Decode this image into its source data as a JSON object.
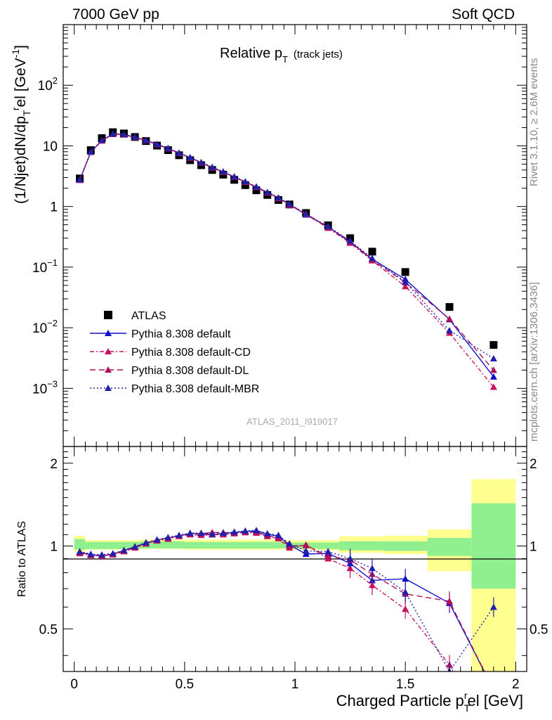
{
  "header": {
    "left": "7000 GeV pp",
    "right": "Soft QCD"
  },
  "side_labels": {
    "rivet": "Rivet 3.1.10, ≥ 2.6M events",
    "mcplots": "mcplots.cern.ch [arXiv:1306.3436]"
  },
  "chart_data": {
    "type": "scatter",
    "title": "Relative p_T (track jets)",
    "title_main": "Relative p",
    "title_sub": "T",
    "title_extra": "(track jets)",
    "analysis_id": "ATLAS_2011_I919017",
    "xlabel": "Charged Particle p_T^rel [GeV]",
    "xlabel_main": "Charged Particle p",
    "xlabel_sub": "T",
    "xlabel_sup": "r",
    "xlabel_tail": "el [GeV]",
    "ylabel": "(1/Njet)dN/dp_T^rel [GeV^-1]",
    "ylabel_main": "(1/Njet)dN/dp",
    "ylabel_sub": "T",
    "ylabel_sup": "r",
    "ylabel_tail": "el [GeV",
    "ylabel_unit_sup": "-1",
    "ylabel_close": "]",
    "ratio_ylabel": "Ratio to ATLAS",
    "xlim": [
      -0.05,
      2.05
    ],
    "ylim_main": [
      0.00011,
      1000
    ],
    "ylim_ratio": [
      0.35,
      2.3
    ],
    "yscale_main": "log",
    "legend_position": "bottom-left",
    "x_ticks": [
      "0",
      "0.5",
      "1",
      "1.5",
      "2"
    ],
    "y_ticks_main": [
      "10^-3",
      "10^-2",
      "10^-1",
      "1",
      "10",
      "10^2"
    ],
    "y_ticks_ratio": [
      "0.5",
      "1",
      "2"
    ],
    "x": [
      0.025,
      0.075,
      0.125,
      0.175,
      0.225,
      0.275,
      0.325,
      0.375,
      0.425,
      0.475,
      0.525,
      0.575,
      0.625,
      0.675,
      0.725,
      0.775,
      0.825,
      0.875,
      0.925,
      0.975,
      1.05,
      1.15,
      1.25,
      1.35,
      1.5,
      1.7,
      1.9
    ],
    "series": [
      {
        "name": "ATLAS",
        "color": "#000000",
        "marker": "square",
        "values": [
          2.9,
          8.5,
          13.4,
          16.8,
          16.0,
          14.0,
          12.0,
          10.1,
          8.5,
          7.0,
          5.8,
          4.8,
          4.0,
          3.35,
          2.75,
          2.25,
          1.85,
          1.55,
          1.28,
          1.08,
          0.78,
          0.49,
          0.3,
          0.18,
          0.083,
          0.022,
          0.0052
        ],
        "ratio": [
          1,
          1,
          1,
          1,
          1,
          1,
          1,
          1,
          1,
          1,
          1,
          1,
          1,
          1,
          1,
          1,
          1,
          1,
          1,
          1,
          1,
          1,
          1,
          1,
          1,
          1,
          1
        ]
      },
      {
        "name": "Pythia 8.308 default",
        "color": "#1010cc",
        "dash": "",
        "marker": "triangle",
        "values": [
          2.75,
          7.9,
          12.3,
          15.7,
          15.4,
          13.9,
          12.3,
          10.6,
          9.1,
          7.6,
          6.4,
          5.3,
          4.4,
          3.72,
          3.08,
          2.54,
          2.1,
          1.71,
          1.39,
          1.09,
          0.73,
          0.46,
          0.26,
          0.135,
          0.063,
          0.0137,
          0.00155
        ],
        "ratio": [
          0.95,
          0.93,
          0.92,
          0.935,
          0.963,
          0.993,
          1.025,
          1.05,
          1.07,
          1.09,
          1.11,
          1.11,
          1.1,
          1.11,
          1.12,
          1.13,
          1.135,
          1.105,
          1.085,
          1.01,
          0.935,
          0.94,
          0.865,
          0.75,
          0.76,
          0.62,
          0.3
        ]
      },
      {
        "name": "Pythia 8.308 default-CD",
        "color": "#cc1060",
        "dash": "6,3,2,3",
        "marker": "triangle",
        "values": [
          2.72,
          7.85,
          12.1,
          15.5,
          15.2,
          13.8,
          12.2,
          10.5,
          9.0,
          7.55,
          6.3,
          5.25,
          4.35,
          3.68,
          3.05,
          2.52,
          2.07,
          1.68,
          1.36,
          1.06,
          0.74,
          0.44,
          0.25,
          0.128,
          0.048,
          0.0082,
          0.00105
        ],
        "ratio": [
          0.94,
          0.925,
          0.92,
          0.93,
          0.955,
          0.985,
          1.02,
          1.045,
          1.06,
          1.085,
          1.1,
          1.095,
          1.1,
          1.1,
          1.11,
          1.12,
          1.115,
          1.085,
          1.065,
          0.985,
          1.01,
          0.9,
          0.83,
          0.72,
          0.59,
          0.37,
          0.2
        ]
      },
      {
        "name": "Pythia 8.308 default-DL",
        "color": "#b0105a",
        "dash": "8,5",
        "marker": "triangle",
        "values": [
          2.73,
          7.9,
          12.2,
          15.6,
          15.3,
          13.85,
          12.25,
          10.55,
          9.05,
          7.6,
          6.35,
          5.3,
          4.4,
          3.7,
          3.07,
          2.55,
          2.1,
          1.7,
          1.38,
          1.08,
          0.76,
          0.45,
          0.27,
          0.13,
          0.056,
          0.014,
          0.002
        ],
        "ratio": [
          0.945,
          0.93,
          0.925,
          0.935,
          0.96,
          0.99,
          1.02,
          1.05,
          1.07,
          1.09,
          1.105,
          1.11,
          1.12,
          1.12,
          1.115,
          1.12,
          1.125,
          1.09,
          1.07,
          1.0,
          1.005,
          0.92,
          0.89,
          0.79,
          0.67,
          0.63,
          0.3
        ]
      },
      {
        "name": "Pythia 8.308 default-MBR",
        "color": "#2020aa",
        "dash": "2,3",
        "marker": "triangle",
        "values": [
          2.76,
          7.95,
          12.4,
          15.8,
          15.5,
          14.0,
          12.35,
          10.65,
          9.15,
          7.65,
          6.45,
          5.35,
          4.45,
          3.75,
          3.1,
          2.58,
          2.12,
          1.72,
          1.4,
          1.1,
          0.75,
          0.47,
          0.27,
          0.14,
          0.057,
          0.009,
          0.0031
        ],
        "ratio": [
          0.955,
          0.935,
          0.93,
          0.94,
          0.965,
          0.995,
          1.03,
          1.055,
          1.075,
          1.095,
          1.115,
          1.115,
          1.105,
          1.115,
          1.125,
          1.135,
          1.14,
          1.11,
          1.095,
          1.02,
          0.96,
          0.955,
          0.9,
          0.83,
          0.68,
          0.35,
          0.6
        ]
      }
    ],
    "bands_ratio": [
      {
        "x0": 0.0,
        "x1": 0.05,
        "stat": [
          0.97,
          1.06
        ],
        "total": [
          0.95,
          1.09
        ]
      },
      {
        "x0": 0.05,
        "x1": 0.3,
        "stat": [
          0.975,
          1.035
        ],
        "total": [
          0.97,
          1.05
        ]
      },
      {
        "x0": 0.3,
        "x1": 0.5,
        "stat": [
          0.98,
          1.04
        ],
        "total": [
          0.975,
          1.055
        ]
      },
      {
        "x0": 0.5,
        "x1": 0.95,
        "stat": [
          0.98,
          1.035
        ],
        "total": [
          0.97,
          1.055
        ]
      },
      {
        "x0": 0.95,
        "x1": 1.1,
        "stat": [
          0.98,
          1.03
        ],
        "total": [
          0.97,
          1.05
        ]
      },
      {
        "x0": 1.1,
        "x1": 1.2,
        "stat": [
          0.975,
          1.03
        ],
        "total": [
          0.965,
          1.05
        ]
      },
      {
        "x0": 1.2,
        "x1": 1.4,
        "stat": [
          0.965,
          1.04
        ],
        "total": [
          0.945,
          1.085
        ]
      },
      {
        "x0": 1.4,
        "x1": 1.6,
        "stat": [
          0.96,
          1.04
        ],
        "total": [
          0.935,
          1.09
        ]
      },
      {
        "x0": 1.6,
        "x1": 1.8,
        "stat": [
          0.92,
          1.07
        ],
        "total": [
          0.81,
          1.15
        ]
      },
      {
        "x0": 1.8,
        "x1": 2.0,
        "stat": [
          0.7,
          1.43
        ],
        "total": [
          0.35,
          1.75
        ]
      }
    ],
    "band_colors": {
      "stat": "#90f090",
      "total": "#ffff90"
    }
  }
}
